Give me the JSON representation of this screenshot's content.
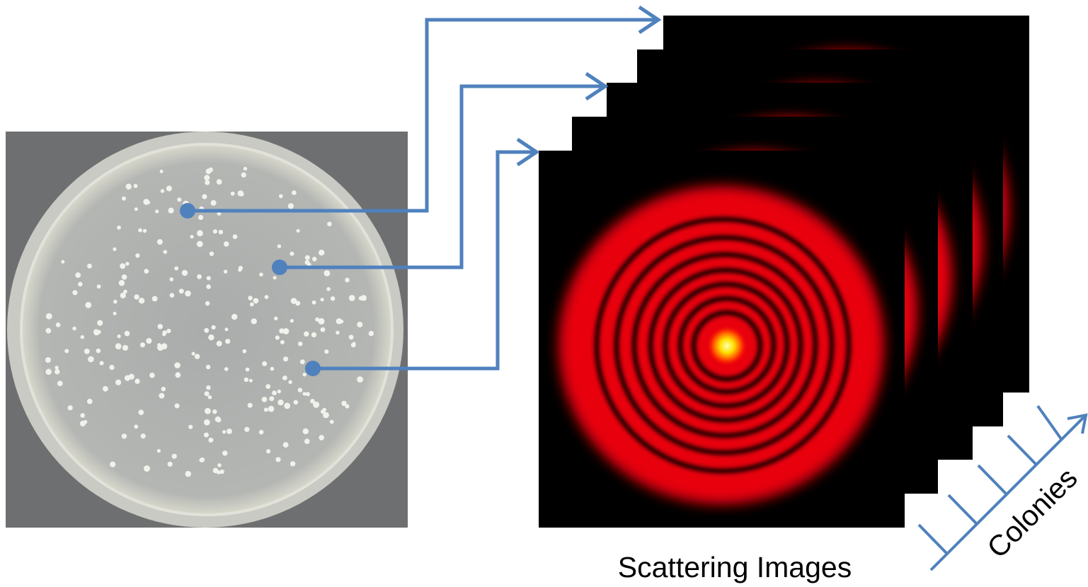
{
  "labels": {
    "images": "Scattering Images",
    "axis": "Colonies"
  }
}
